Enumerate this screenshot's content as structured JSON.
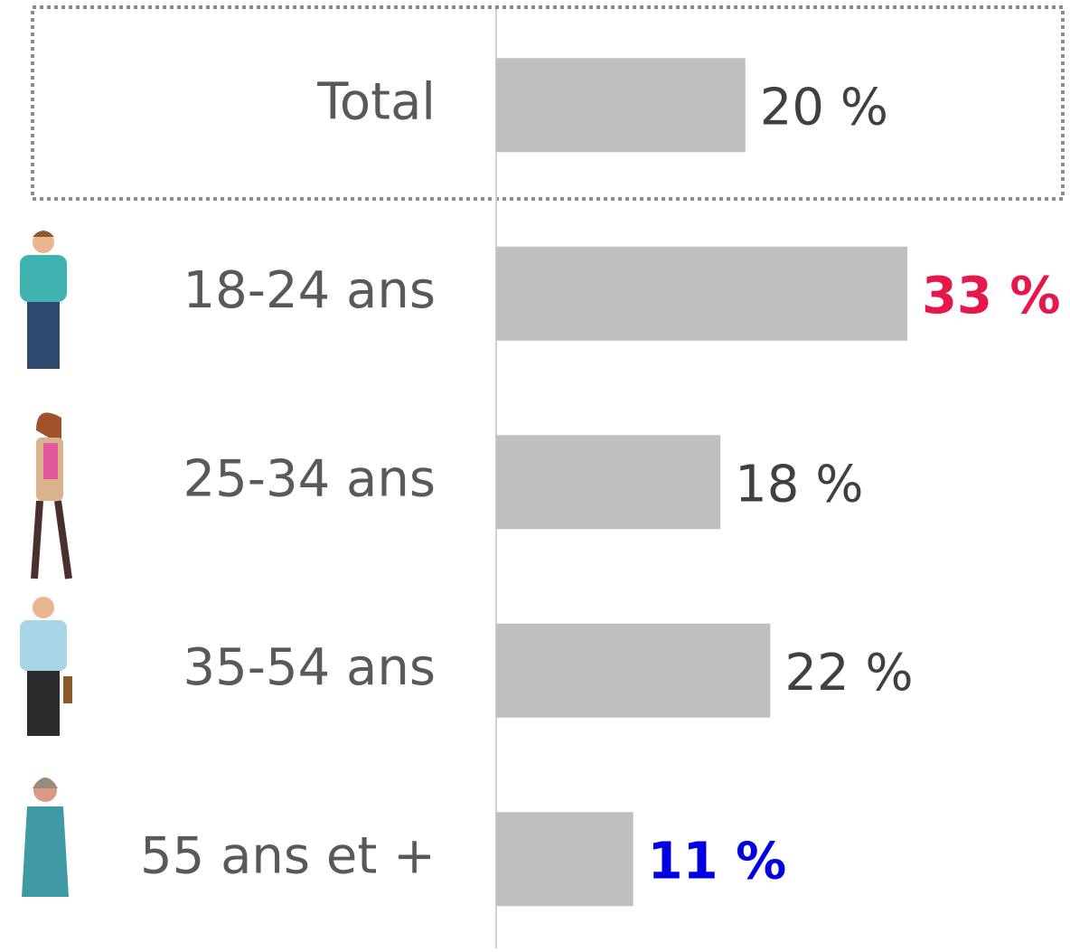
{
  "chart_data": {
    "type": "hbar",
    "categories": [
      "Total",
      "18-24 ans",
      "25-34 ans",
      "35-54 ans",
      "55 ans et +"
    ],
    "values": [
      20,
      33,
      18,
      22,
      11
    ],
    "value_labels": [
      "20 %",
      "33 %",
      "18 %",
      "22 %",
      "11 %"
    ],
    "color": "#bfbfbf",
    "value_label_colors": [
      "#404040",
      "#e5174b",
      "#404040",
      "#404040",
      "#0000e0"
    ],
    "value_label_bold": [
      false,
      true,
      false,
      false,
      true
    ]
  }
}
